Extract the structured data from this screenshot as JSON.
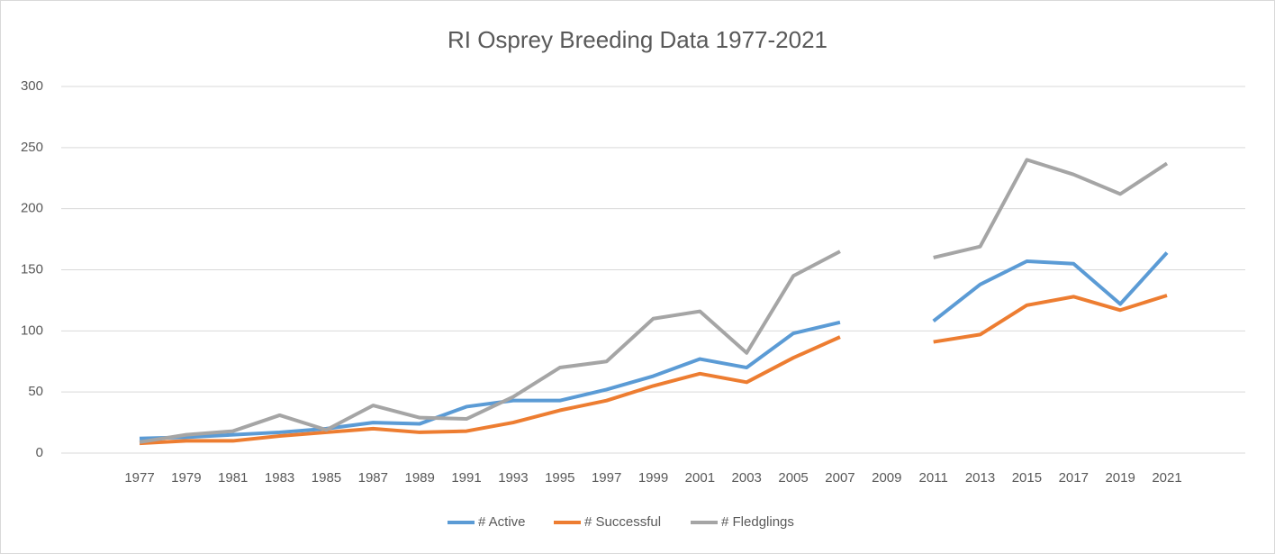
{
  "chart_data": {
    "type": "line",
    "title": "RI Osprey Breeding Data 1977-2021",
    "categories": [
      "1977",
      "1979",
      "1981",
      "1983",
      "1985",
      "1987",
      "1989",
      "1991",
      "1993",
      "1995",
      "1997",
      "1999",
      "2001",
      "2003",
      "2005",
      "2007",
      "2009",
      "2011",
      "2013",
      "2015",
      "2017",
      "2019",
      "2021"
    ],
    "series": [
      {
        "name": "# Active",
        "color": "#5b9bd5",
        "values": [
          12,
          13,
          15,
          17,
          20,
          25,
          24,
          38,
          43,
          43,
          52,
          63,
          77,
          70,
          98,
          107,
          null,
          108,
          138,
          157,
          155,
          122,
          164
        ]
      },
      {
        "name": "# Successful",
        "color": "#ed7d31",
        "values": [
          8,
          10,
          10,
          14,
          17,
          20,
          17,
          18,
          25,
          35,
          43,
          55,
          65,
          58,
          78,
          95,
          null,
          91,
          97,
          121,
          128,
          117,
          129
        ]
      },
      {
        "name": "# Fledglings",
        "color": "#a5a5a5",
        "values": [
          9,
          15,
          18,
          31,
          19,
          39,
          29,
          28,
          46,
          70,
          75,
          110,
          116,
          82,
          145,
          165,
          null,
          160,
          169,
          240,
          228,
          212,
          237
        ]
      }
    ],
    "ylim": [
      0,
      300
    ],
    "yticks": [
      0,
      50,
      100,
      150,
      200,
      250,
      300
    ],
    "grid": true,
    "legend": "bottom"
  }
}
